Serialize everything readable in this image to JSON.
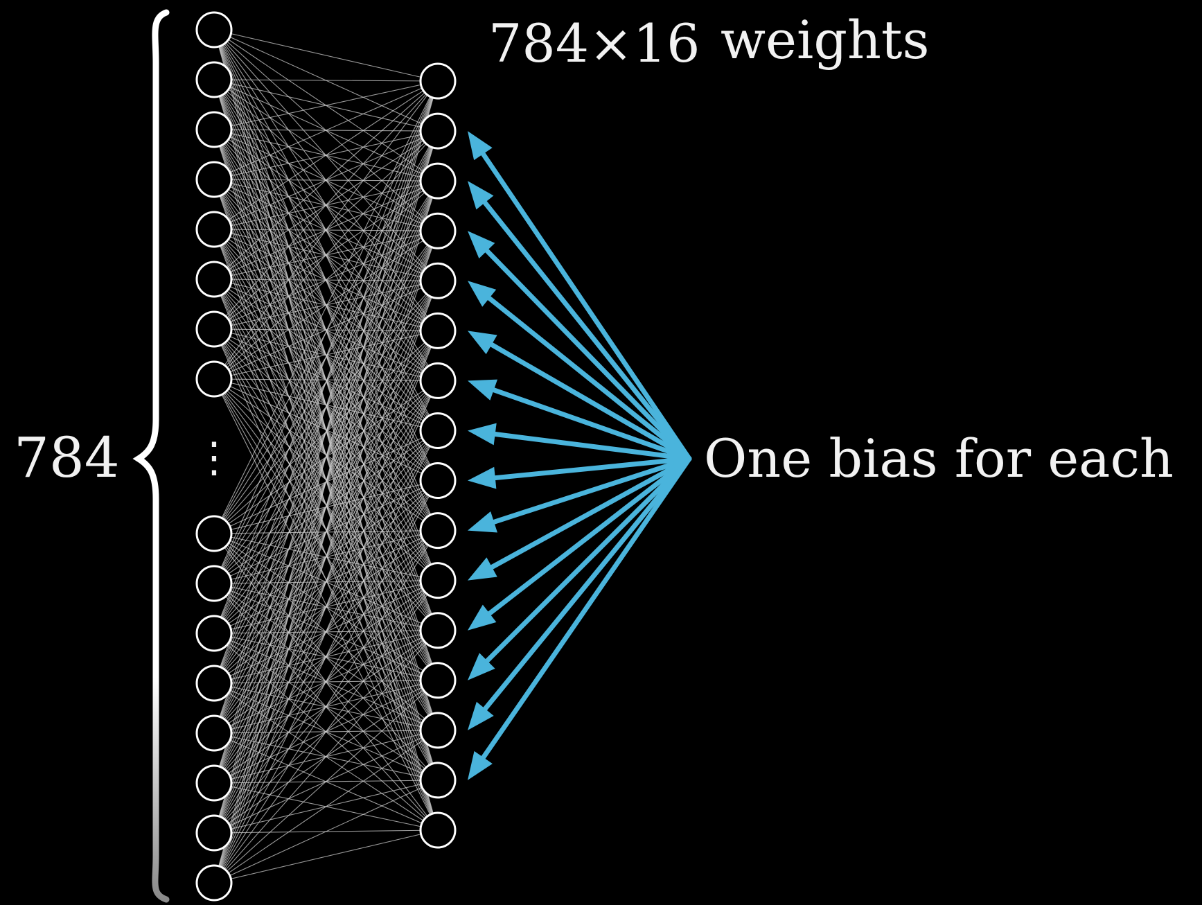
{
  "labels": {
    "input_count": "784",
    "weights_count": "784×16",
    "weights_word": "weights",
    "bias_text": "One bias for each"
  },
  "network": {
    "input_layer": {
      "top_neurons": 8,
      "bottom_neurons": 8,
      "ellipsis": "⋮"
    },
    "hidden_layer": {
      "neurons": 16
    },
    "connections": "fully-connected",
    "bias_arrows": 14
  },
  "colors": {
    "background": "#000000",
    "neuron_stroke": "#ffffff",
    "connection": "#cfcfcf",
    "arrow": "#4ab4dc",
    "text": "#f2f2f2"
  }
}
